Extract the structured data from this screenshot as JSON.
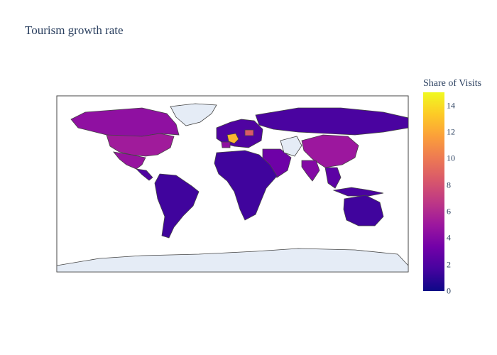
{
  "chart_data": {
    "type": "choropleth",
    "title": "Tourism growth rate",
    "colorbar": {
      "title": "Share of Visits",
      "range": [
        0,
        15
      ],
      "ticks": [
        "0",
        "2",
        "4",
        "6",
        "8",
        "10",
        "12",
        "14"
      ],
      "colorscale": [
        "#0d0887",
        "#46039f",
        "#7201a8",
        "#9c179e",
        "#bd3786",
        "#d8576b",
        "#ed7953",
        "#fb9f3a",
        "#fdca26",
        "#f0f921"
      ]
    },
    "land_color": "#e5ecf6",
    "border_color": "#444444",
    "regions": [
      {
        "name": "Canada",
        "value": 4.5
      },
      {
        "name": "United States",
        "value": 5.2
      },
      {
        "name": "Mexico",
        "value": 4.8
      },
      {
        "name": "Central America",
        "value": 2.0
      },
      {
        "name": "Greenland",
        "value": null
      },
      {
        "name": "South America",
        "value": 1.5
      },
      {
        "name": "Europe",
        "value": 2.0
      },
      {
        "name": "France",
        "value": 12.5
      },
      {
        "name": "Spain",
        "value": 4.5
      },
      {
        "name": "Poland",
        "value": 8.5
      },
      {
        "name": "Russia",
        "value": 1.8
      },
      {
        "name": "China",
        "value": 5.0
      },
      {
        "name": "India",
        "value": 4.0
      },
      {
        "name": "Middle East",
        "value": 3.2
      },
      {
        "name": "Africa",
        "value": 1.5
      },
      {
        "name": "Mongolia",
        "value": null
      },
      {
        "name": "Southeast Asia",
        "value": 2.5
      },
      {
        "name": "Indonesia",
        "value": 1.8
      },
      {
        "name": "Australia",
        "value": 1.5
      },
      {
        "name": "Antarctica",
        "value": null
      }
    ]
  }
}
